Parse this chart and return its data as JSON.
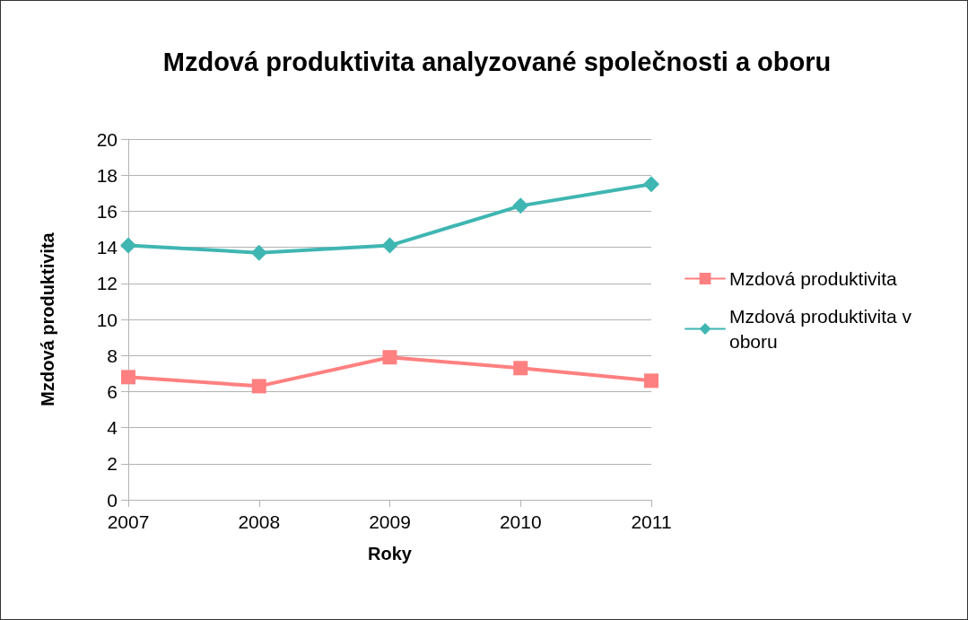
{
  "chart_data": {
    "type": "line",
    "title": "Mzdová produktivita analyzované společnosti a oboru",
    "xlabel": "Roky",
    "ylabel": "Mzdová produktivita",
    "categories": [
      "2007",
      "2008",
      "2009",
      "2010",
      "2011"
    ],
    "series": [
      {
        "name": "Mzdová produktivita",
        "color": "#ff8080",
        "marker": "square",
        "values": [
          6.8,
          6.3,
          7.9,
          7.3,
          6.6
        ]
      },
      {
        "name": "Mzdová produktivita v oboru",
        "color": "#3fb6b2",
        "marker": "diamond",
        "values": [
          14.1,
          13.7,
          14.1,
          16.3,
          17.5
        ]
      }
    ],
    "ylim": [
      0,
      20
    ],
    "yticks": [
      0,
      2,
      4,
      6,
      8,
      10,
      12,
      14,
      16,
      18,
      20
    ],
    "grid": "y",
    "legend": "right",
    "line_style": "solid"
  }
}
